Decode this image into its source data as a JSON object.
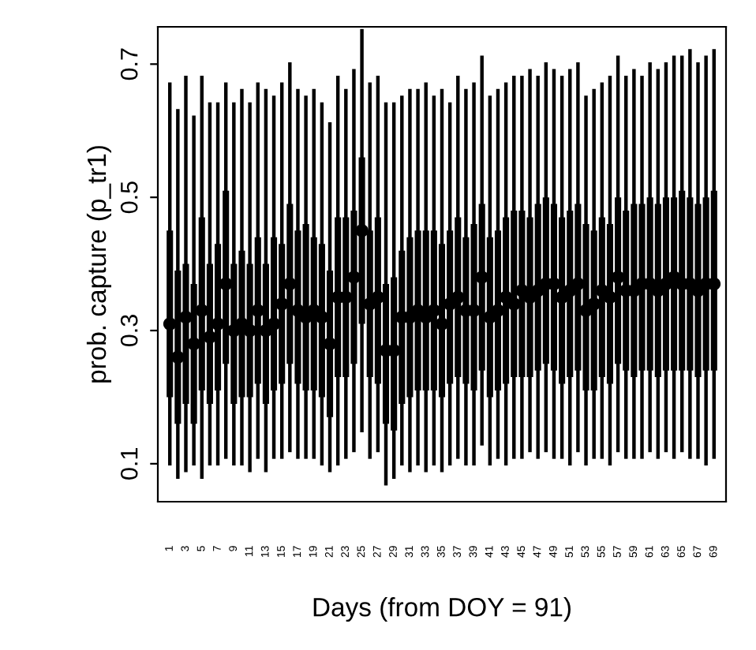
{
  "chart_data": {
    "type": "box",
    "xlabel": "Days (from DOY = 91)",
    "ylabel": "prob. capture (p_tr1)",
    "categories": [
      "1",
      null,
      "3",
      null,
      "5",
      null,
      "7",
      null,
      "9",
      null,
      "11",
      null,
      "13",
      null,
      "15",
      null,
      "17",
      null,
      "19",
      null,
      "21",
      null,
      "23",
      null,
      "25",
      null,
      "27",
      null,
      "29",
      null,
      "31",
      null,
      "33",
      null,
      "35",
      null,
      "37",
      null,
      "39",
      null,
      "41",
      null,
      "43",
      null,
      "45",
      null,
      "47",
      null,
      "49",
      null,
      "51",
      null,
      "53",
      null,
      "55",
      null,
      "57",
      null,
      "59",
      null,
      "61",
      null,
      "63",
      null,
      "65",
      null,
      "67",
      null,
      "69"
    ],
    "ylim": [
      0.043,
      0.756
    ],
    "yticks": [
      0.1,
      0.3,
      0.5,
      0.7
    ],
    "grid": false,
    "legend": false,
    "color": "#000000",
    "marker": "circle",
    "series": [
      {
        "type": "scatter",
        "color": "#000000",
        "values": [
          0.31,
          0.26,
          0.32,
          0.28,
          0.33,
          0.29,
          0.31,
          0.37,
          0.3,
          0.31,
          0.3,
          0.33,
          0.3,
          0.31,
          0.34,
          0.37,
          0.33,
          0.32,
          0.33,
          0.32,
          0.28,
          0.35,
          0.35,
          0.38,
          0.45,
          0.34,
          0.35,
          0.27,
          0.27,
          0.32,
          0.32,
          0.33,
          0.32,
          0.33,
          0.31,
          0.34,
          0.35,
          0.33,
          0.33,
          0.38,
          0.32,
          0.33,
          0.35,
          0.34,
          0.36,
          0.35,
          0.36,
          0.37,
          0.37,
          0.35,
          0.36,
          0.37,
          0.33,
          0.34,
          0.36,
          0.35,
          0.38,
          0.36,
          0.36,
          0.37,
          0.37,
          0.36,
          0.37,
          0.38,
          0.37,
          0.37,
          0.36,
          0.37,
          0.37
        ]
      }
    ],
    "boxes": [
      {
        "low": 0.1,
        "q1": 0.2,
        "median": 0.31,
        "q3": 0.45,
        "high": 0.67
      },
      {
        "low": 0.08,
        "q1": 0.16,
        "median": 0.26,
        "q3": 0.39,
        "high": 0.63
      },
      {
        "low": 0.09,
        "q1": 0.19,
        "median": 0.32,
        "q3": 0.4,
        "high": 0.68
      },
      {
        "low": 0.1,
        "q1": 0.16,
        "median": 0.28,
        "q3": 0.37,
        "high": 0.62
      },
      {
        "low": 0.08,
        "q1": 0.21,
        "median": 0.33,
        "q3": 0.47,
        "high": 0.68
      },
      {
        "low": 0.1,
        "q1": 0.19,
        "median": 0.29,
        "q3": 0.4,
        "high": 0.64
      },
      {
        "low": 0.1,
        "q1": 0.21,
        "median": 0.31,
        "q3": 0.43,
        "high": 0.64
      },
      {
        "low": 0.11,
        "q1": 0.25,
        "median": 0.37,
        "q3": 0.51,
        "high": 0.67
      },
      {
        "low": 0.1,
        "q1": 0.19,
        "median": 0.3,
        "q3": 0.4,
        "high": 0.64
      },
      {
        "low": 0.1,
        "q1": 0.2,
        "median": 0.31,
        "q3": 0.42,
        "high": 0.66
      },
      {
        "low": 0.09,
        "q1": 0.2,
        "median": 0.3,
        "q3": 0.4,
        "high": 0.64
      },
      {
        "low": 0.11,
        "q1": 0.22,
        "median": 0.33,
        "q3": 0.44,
        "high": 0.67
      },
      {
        "low": 0.09,
        "q1": 0.19,
        "median": 0.3,
        "q3": 0.4,
        "high": 0.66
      },
      {
        "low": 0.11,
        "q1": 0.21,
        "median": 0.31,
        "q3": 0.44,
        "high": 0.65
      },
      {
        "low": 0.11,
        "q1": 0.22,
        "median": 0.34,
        "q3": 0.43,
        "high": 0.67
      },
      {
        "low": 0.12,
        "q1": 0.25,
        "median": 0.37,
        "q3": 0.49,
        "high": 0.7
      },
      {
        "low": 0.11,
        "q1": 0.22,
        "median": 0.33,
        "q3": 0.45,
        "high": 0.66
      },
      {
        "low": 0.11,
        "q1": 0.21,
        "median": 0.32,
        "q3": 0.46,
        "high": 0.65
      },
      {
        "low": 0.11,
        "q1": 0.21,
        "median": 0.33,
        "q3": 0.44,
        "high": 0.66
      },
      {
        "low": 0.1,
        "q1": 0.2,
        "median": 0.32,
        "q3": 0.43,
        "high": 0.64
      },
      {
        "low": 0.09,
        "q1": 0.17,
        "median": 0.28,
        "q3": 0.39,
        "high": 0.61
      },
      {
        "low": 0.1,
        "q1": 0.23,
        "median": 0.35,
        "q3": 0.47,
        "high": 0.68
      },
      {
        "low": 0.11,
        "q1": 0.23,
        "median": 0.35,
        "q3": 0.47,
        "high": 0.66
      },
      {
        "low": 0.12,
        "q1": 0.25,
        "median": 0.38,
        "q3": 0.48,
        "high": 0.69
      },
      {
        "low": 0.15,
        "q1": 0.31,
        "median": 0.45,
        "q3": 0.56,
        "high": 0.75
      },
      {
        "low": 0.11,
        "q1": 0.23,
        "median": 0.34,
        "q3": 0.45,
        "high": 0.67
      },
      {
        "low": 0.12,
        "q1": 0.22,
        "median": 0.35,
        "q3": 0.47,
        "high": 0.68
      },
      {
        "low": 0.07,
        "q1": 0.16,
        "median": 0.27,
        "q3": 0.37,
        "high": 0.64
      },
      {
        "low": 0.08,
        "q1": 0.15,
        "median": 0.27,
        "q3": 0.38,
        "high": 0.64
      },
      {
        "low": 0.1,
        "q1": 0.19,
        "median": 0.32,
        "q3": 0.42,
        "high": 0.65
      },
      {
        "low": 0.09,
        "q1": 0.2,
        "median": 0.32,
        "q3": 0.44,
        "high": 0.66
      },
      {
        "low": 0.1,
        "q1": 0.21,
        "median": 0.33,
        "q3": 0.45,
        "high": 0.66
      },
      {
        "low": 0.09,
        "q1": 0.21,
        "median": 0.32,
        "q3": 0.45,
        "high": 0.67
      },
      {
        "low": 0.1,
        "q1": 0.21,
        "median": 0.33,
        "q3": 0.45,
        "high": 0.65
      },
      {
        "low": 0.09,
        "q1": 0.2,
        "median": 0.31,
        "q3": 0.43,
        "high": 0.66
      },
      {
        "low": 0.1,
        "q1": 0.22,
        "median": 0.34,
        "q3": 0.45,
        "high": 0.64
      },
      {
        "low": 0.11,
        "q1": 0.23,
        "median": 0.35,
        "q3": 0.47,
        "high": 0.68
      },
      {
        "low": 0.1,
        "q1": 0.22,
        "median": 0.33,
        "q3": 0.44,
        "high": 0.66
      },
      {
        "low": 0.1,
        "q1": 0.21,
        "median": 0.33,
        "q3": 0.46,
        "high": 0.67
      },
      {
        "low": 0.13,
        "q1": 0.24,
        "median": 0.38,
        "q3": 0.49,
        "high": 0.71
      },
      {
        "low": 0.1,
        "q1": 0.2,
        "median": 0.32,
        "q3": 0.44,
        "high": 0.65
      },
      {
        "low": 0.11,
        "q1": 0.21,
        "median": 0.33,
        "q3": 0.45,
        "high": 0.66
      },
      {
        "low": 0.1,
        "q1": 0.22,
        "median": 0.35,
        "q3": 0.47,
        "high": 0.67
      },
      {
        "low": 0.11,
        "q1": 0.23,
        "median": 0.34,
        "q3": 0.48,
        "high": 0.68
      },
      {
        "low": 0.11,
        "q1": 0.23,
        "median": 0.36,
        "q3": 0.48,
        "high": 0.68
      },
      {
        "low": 0.12,
        "q1": 0.23,
        "median": 0.35,
        "q3": 0.47,
        "high": 0.69
      },
      {
        "low": 0.11,
        "q1": 0.24,
        "median": 0.36,
        "q3": 0.49,
        "high": 0.68
      },
      {
        "low": 0.12,
        "q1": 0.25,
        "median": 0.37,
        "q3": 0.5,
        "high": 0.7
      },
      {
        "low": 0.11,
        "q1": 0.24,
        "median": 0.37,
        "q3": 0.49,
        "high": 0.69
      },
      {
        "low": 0.11,
        "q1": 0.22,
        "median": 0.35,
        "q3": 0.47,
        "high": 0.68
      },
      {
        "low": 0.1,
        "q1": 0.23,
        "median": 0.36,
        "q3": 0.48,
        "high": 0.69
      },
      {
        "low": 0.12,
        "q1": 0.24,
        "median": 0.37,
        "q3": 0.49,
        "high": 0.7
      },
      {
        "low": 0.1,
        "q1": 0.21,
        "median": 0.33,
        "q3": 0.46,
        "high": 0.65
      },
      {
        "low": 0.11,
        "q1": 0.21,
        "median": 0.34,
        "q3": 0.45,
        "high": 0.66
      },
      {
        "low": 0.11,
        "q1": 0.23,
        "median": 0.36,
        "q3": 0.47,
        "high": 0.67
      },
      {
        "low": 0.1,
        "q1": 0.22,
        "median": 0.35,
        "q3": 0.46,
        "high": 0.68
      },
      {
        "low": 0.12,
        "q1": 0.25,
        "median": 0.38,
        "q3": 0.5,
        "high": 0.71
      },
      {
        "low": 0.11,
        "q1": 0.24,
        "median": 0.36,
        "q3": 0.48,
        "high": 0.68
      },
      {
        "low": 0.11,
        "q1": 0.23,
        "median": 0.36,
        "q3": 0.49,
        "high": 0.69
      },
      {
        "low": 0.11,
        "q1": 0.24,
        "median": 0.37,
        "q3": 0.49,
        "high": 0.68
      },
      {
        "low": 0.12,
        "q1": 0.24,
        "median": 0.37,
        "q3": 0.5,
        "high": 0.7
      },
      {
        "low": 0.11,
        "q1": 0.23,
        "median": 0.36,
        "q3": 0.49,
        "high": 0.69
      },
      {
        "low": 0.12,
        "q1": 0.24,
        "median": 0.37,
        "q3": 0.5,
        "high": 0.7
      },
      {
        "low": 0.11,
        "q1": 0.24,
        "median": 0.38,
        "q3": 0.5,
        "high": 0.71
      },
      {
        "low": 0.12,
        "q1": 0.24,
        "median": 0.37,
        "q3": 0.51,
        "high": 0.71
      },
      {
        "low": 0.11,
        "q1": 0.24,
        "median": 0.37,
        "q3": 0.5,
        "high": 0.72
      },
      {
        "low": 0.11,
        "q1": 0.23,
        "median": 0.36,
        "q3": 0.49,
        "high": 0.7
      },
      {
        "low": 0.1,
        "q1": 0.24,
        "median": 0.37,
        "q3": 0.5,
        "high": 0.71
      },
      {
        "low": 0.11,
        "q1": 0.24,
        "median": 0.37,
        "q3": 0.51,
        "high": 0.72
      }
    ]
  }
}
